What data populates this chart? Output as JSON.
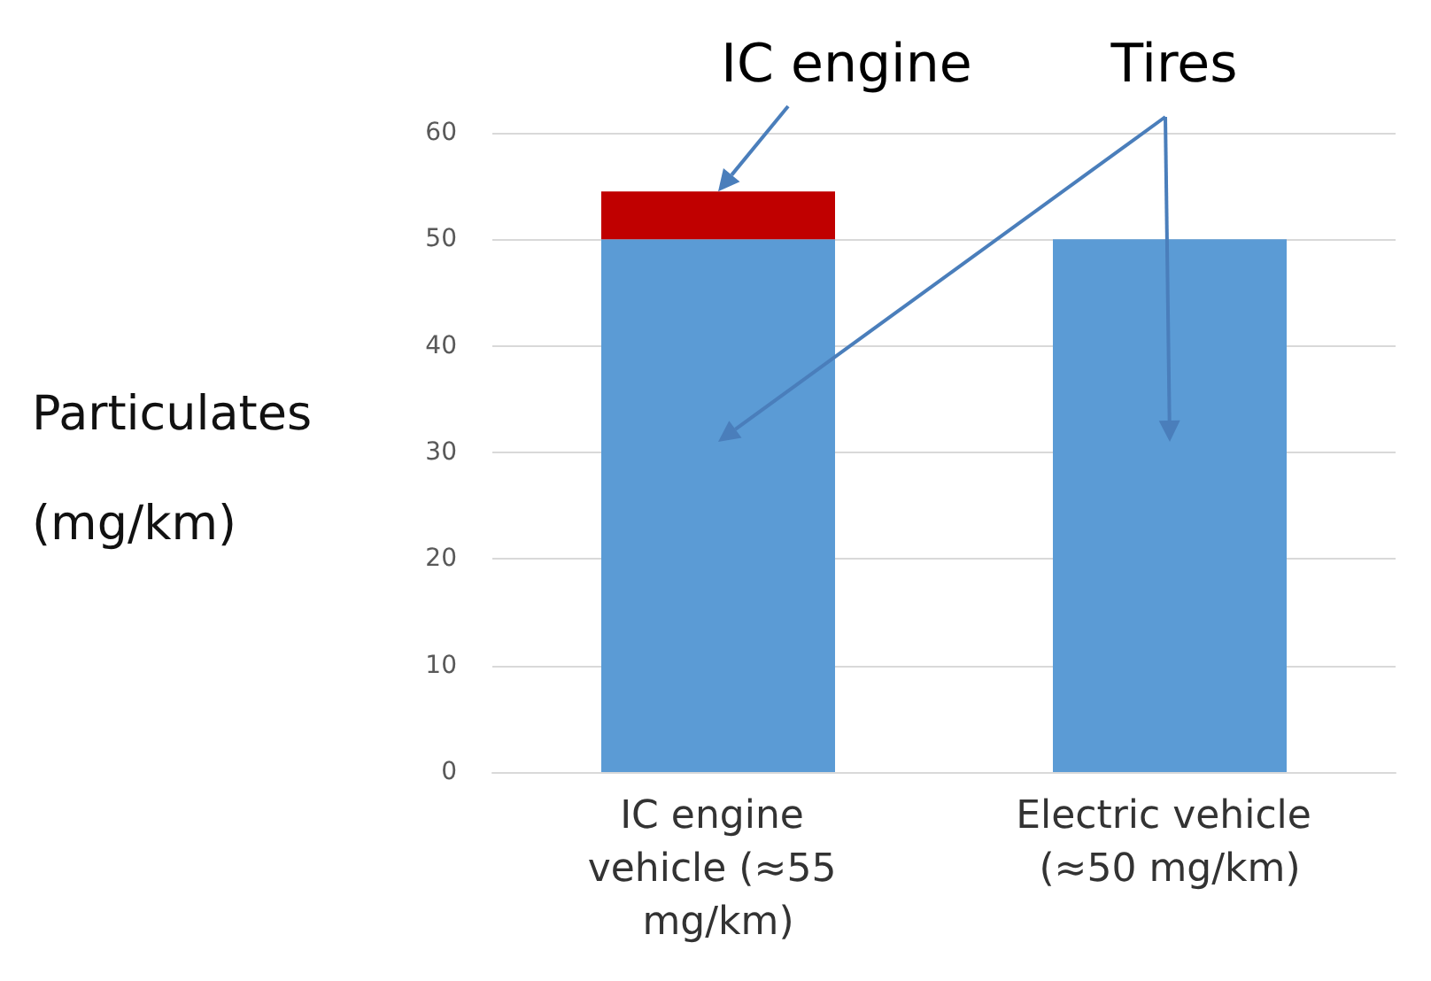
{
  "chart_data": {
    "type": "bar",
    "stacked": true,
    "ylabel": "Particulates (mg/km)",
    "categories": [
      "IC engine vehicle (≈55 mg/km)",
      "Electric vehicle (≈50 mg/km)"
    ],
    "series": [
      {
        "name": "Tires",
        "color": "#5b9bd5",
        "values": [
          50,
          50
        ]
      },
      {
        "name": "IC engine",
        "color": "#c00000",
        "values": [
          4.5,
          0
        ]
      }
    ],
    "ylim": [
      0,
      60
    ],
    "yticks": [
      0,
      10,
      20,
      30,
      40,
      50,
      60
    ],
    "grid": "y",
    "legend": false
  }
}
